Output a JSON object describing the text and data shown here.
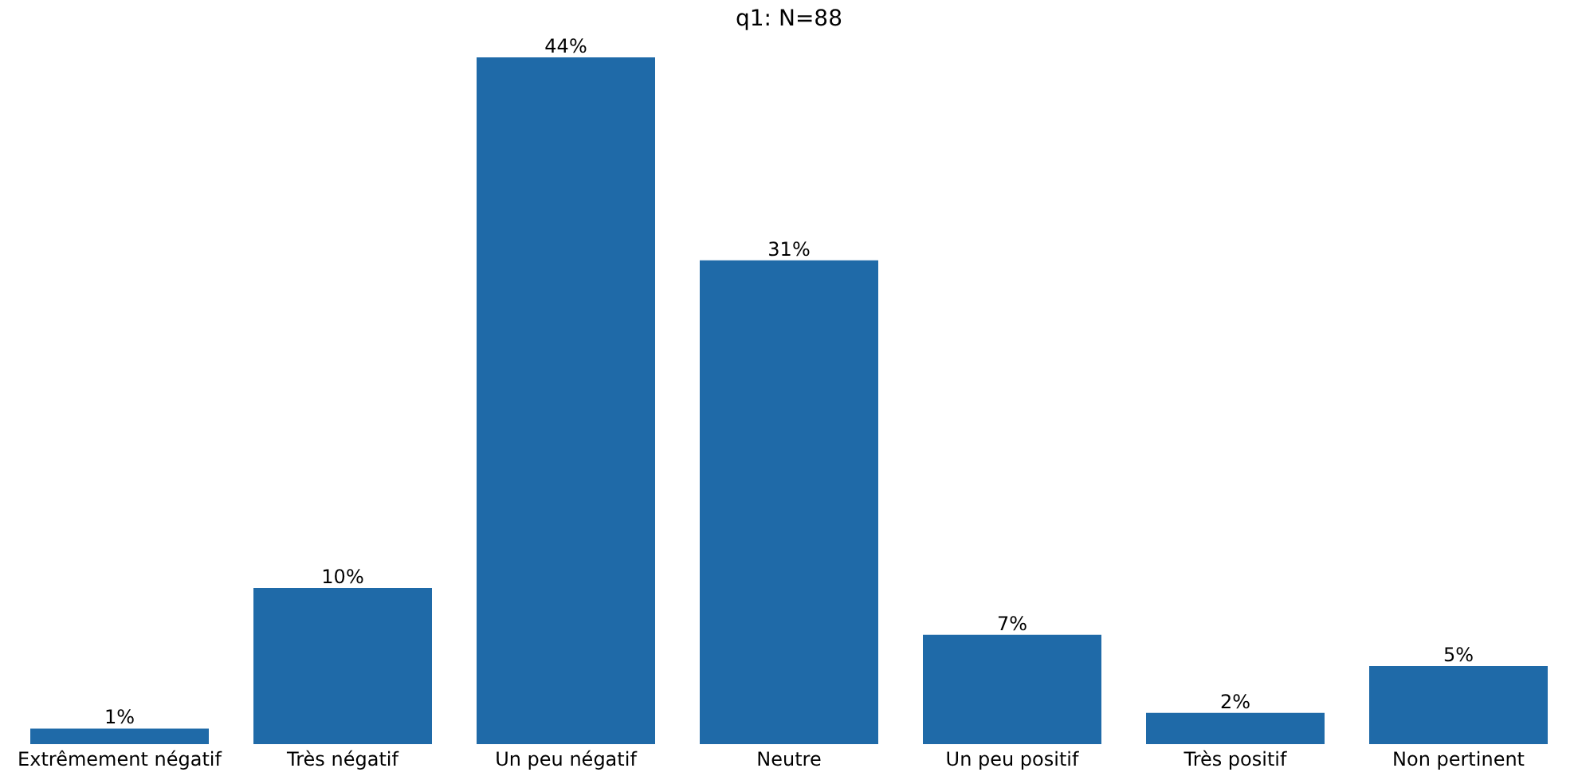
{
  "chart_data": {
    "type": "bar",
    "title": "q1: N=88",
    "categories": [
      "Extrêmement négatif",
      "Très négatif",
      "Un peu négatif",
      "Neutre",
      "Un peu positif",
      "Très positif",
      "Non pertinent"
    ],
    "values": [
      1,
      10,
      44,
      31,
      7,
      2,
      5
    ],
    "value_labels": [
      "1%",
      "10%",
      "44%",
      "31%",
      "7%",
      "2%",
      "5%"
    ],
    "color": "#1f6aa8",
    "grid": false
  }
}
